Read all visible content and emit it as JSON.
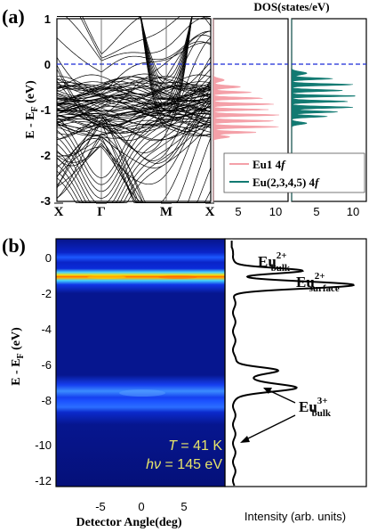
{
  "panel_a": {
    "label": "(a)",
    "band_ylabel": "E - E",
    "band_ylabel_sub": "F",
    "band_ylabel_unit": "(eV)",
    "band_yticks": [
      "1",
      "0",
      "-1",
      "-2",
      "-3"
    ],
    "kpoints": [
      "X",
      "Γ",
      "M",
      "X"
    ],
    "dos_title": "DOS(states/eV)",
    "dos_xticks": [
      "5",
      "10"
    ],
    "legend": [
      {
        "label": "Eu1 4",
        "italic": "f",
        "color": "#f4a0a8"
      },
      {
        "label": "Eu(2,3,4,5) 4",
        "italic": "f",
        "color": "#127a72"
      }
    ]
  },
  "panel_b": {
    "label": "(b)",
    "ylabel": "E - E",
    "ylabel_sub": "F",
    "ylabel_unit": "(eV)",
    "yticks": [
      "0",
      "-2",
      "-4",
      "-6",
      "-8",
      "-10",
      "-12"
    ],
    "xticks": [
      "-5",
      "0",
      "5"
    ],
    "xlabel": "Detector Angle(deg)",
    "intensity_label": "Intensity (arb. units)",
    "temperature": "= 41 K",
    "temperature_sym": "T",
    "photon": "= 145 eV",
    "photon_sym": "hν",
    "annotations": {
      "bulk2": {
        "base": "Eu",
        "sup": "2+",
        "sub": "bulk"
      },
      "surface2": {
        "base": "Eu",
        "sup": "2+",
        "sub": "surface"
      },
      "bulk3": {
        "base": "Eu",
        "sup": "3+",
        "sub": "bulk"
      }
    }
  },
  "colors": {
    "fermi_dashed": "#1a2bd6",
    "eu1": "#f4a0a8",
    "eu2": "#127a72",
    "arpes_bg": "#05127a"
  }
}
